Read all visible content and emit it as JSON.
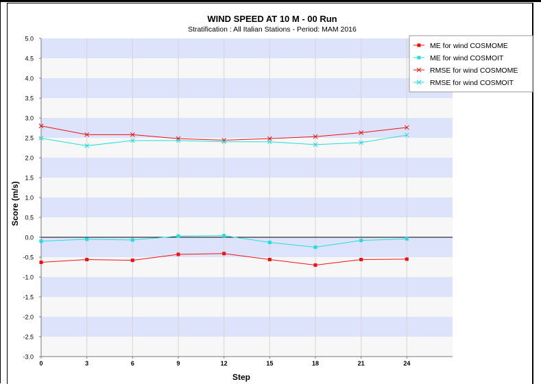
{
  "chart_data": {
    "type": "line",
    "title": "WIND SPEED AT 10 M - 00 Run",
    "subtitle": "Stratification : All Italian Stations - Period: MAM 2016",
    "xlabel": "Step",
    "ylabel": "Score (m/s)",
    "xlim": [
      0,
      27
    ],
    "ylim": [
      -3.0,
      5.0
    ],
    "x": [
      0,
      3,
      6,
      9,
      12,
      15,
      18,
      21,
      24
    ],
    "x_ticks": [
      "0",
      "3",
      "6",
      "9",
      "12",
      "15",
      "18",
      "21",
      "24"
    ],
    "y_ticks": [
      "5.0",
      "4.5",
      "4.0",
      "3.5",
      "3.0",
      "2.5",
      "2.0",
      "1.5",
      "1.0",
      "0.5",
      "0.0",
      "-0.5",
      "-1.0",
      "-1.5",
      "-2.0",
      "-2.5",
      "-3.0"
    ],
    "grid": true,
    "legend_position": "top-right",
    "series": [
      {
        "name": "ME for wind COSMOME",
        "color": "#ee1111",
        "marker": "square",
        "values": [
          -0.63,
          -0.56,
          -0.58,
          -0.43,
          -0.41,
          -0.56,
          -0.7,
          -0.56,
          -0.55
        ]
      },
      {
        "name": "ME for wind COSMOIT",
        "color": "#22dddd",
        "marker": "square",
        "values": [
          -0.1,
          -0.05,
          -0.07,
          0.03,
          0.04,
          -0.13,
          -0.25,
          -0.08,
          -0.04
        ]
      },
      {
        "name": "RMSE for wind COSMOME",
        "color": "#ee1111",
        "marker": "cross",
        "values": [
          2.8,
          2.58,
          2.58,
          2.48,
          2.44,
          2.48,
          2.53,
          2.63,
          2.76
        ]
      },
      {
        "name": "RMSE for wind COSMOIT",
        "color": "#22dddd",
        "marker": "cross",
        "values": [
          2.49,
          2.3,
          2.43,
          2.43,
          2.4,
          2.4,
          2.33,
          2.38,
          2.57
        ]
      }
    ],
    "colors": {
      "band": "#dde3fb",
      "band_alt": "#f7f7f7",
      "zero_line": "#000000"
    }
  }
}
